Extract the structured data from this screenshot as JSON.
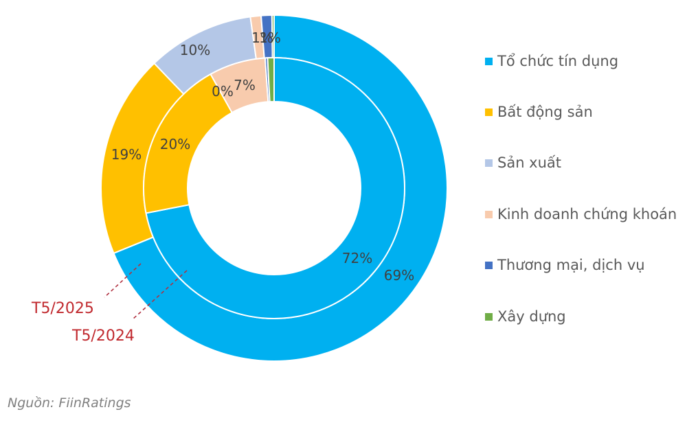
{
  "chart_data": {
    "type": "pie",
    "subtype": "double-donut",
    "title": "",
    "categories": [
      "Tổ chức tín dụng",
      "Bất động sản",
      "Sản xuất",
      "Kinh doanh chứng khoán",
      "Thương mại, dịch vụ",
      "Xây dựng"
    ],
    "colors": [
      "#00B0F0",
      "#FFC000",
      "#B4C7E7",
      "#F8CBAD",
      "#4472C4",
      "#70AD47"
    ],
    "series": [
      {
        "name": "T5/2025",
        "ring": "outer",
        "values": [
          69,
          19,
          10,
          1,
          1,
          0.2
        ],
        "labels": [
          "69%",
          "19%",
          "10%",
          "1%",
          "1%",
          ""
        ]
      },
      {
        "name": "T5/2024",
        "ring": "inner",
        "values": [
          72,
          20,
          0,
          7,
          0.3,
          0.8
        ],
        "labels": [
          "72%",
          "20%",
          "0%",
          "7%",
          "",
          ""
        ]
      }
    ],
    "legend_position": "right",
    "source": "Nguồn: FiinRatings"
  },
  "legend": {
    "items": [
      {
        "label": "Tổ chức tín dụng",
        "color": "#00B0F0"
      },
      {
        "label": "Bất động sản",
        "color": "#FFC000"
      },
      {
        "label": "Sản xuất",
        "color": "#B4C7E7"
      },
      {
        "label": "Kinh doanh chứng khoán",
        "color": "#F8CBAD"
      },
      {
        "label": "Thương mại, dịch vụ",
        "color": "#4472C4"
      },
      {
        "label": "Xây dựng",
        "color": "#70AD47"
      }
    ]
  },
  "annotations": {
    "outer_ring_label": "T5/2025",
    "inner_ring_label": "T5/2024",
    "leader_color": "#b03040",
    "label_color": "#c0282d"
  },
  "footer": {
    "source": "Nguồn: FiinRatings"
  }
}
